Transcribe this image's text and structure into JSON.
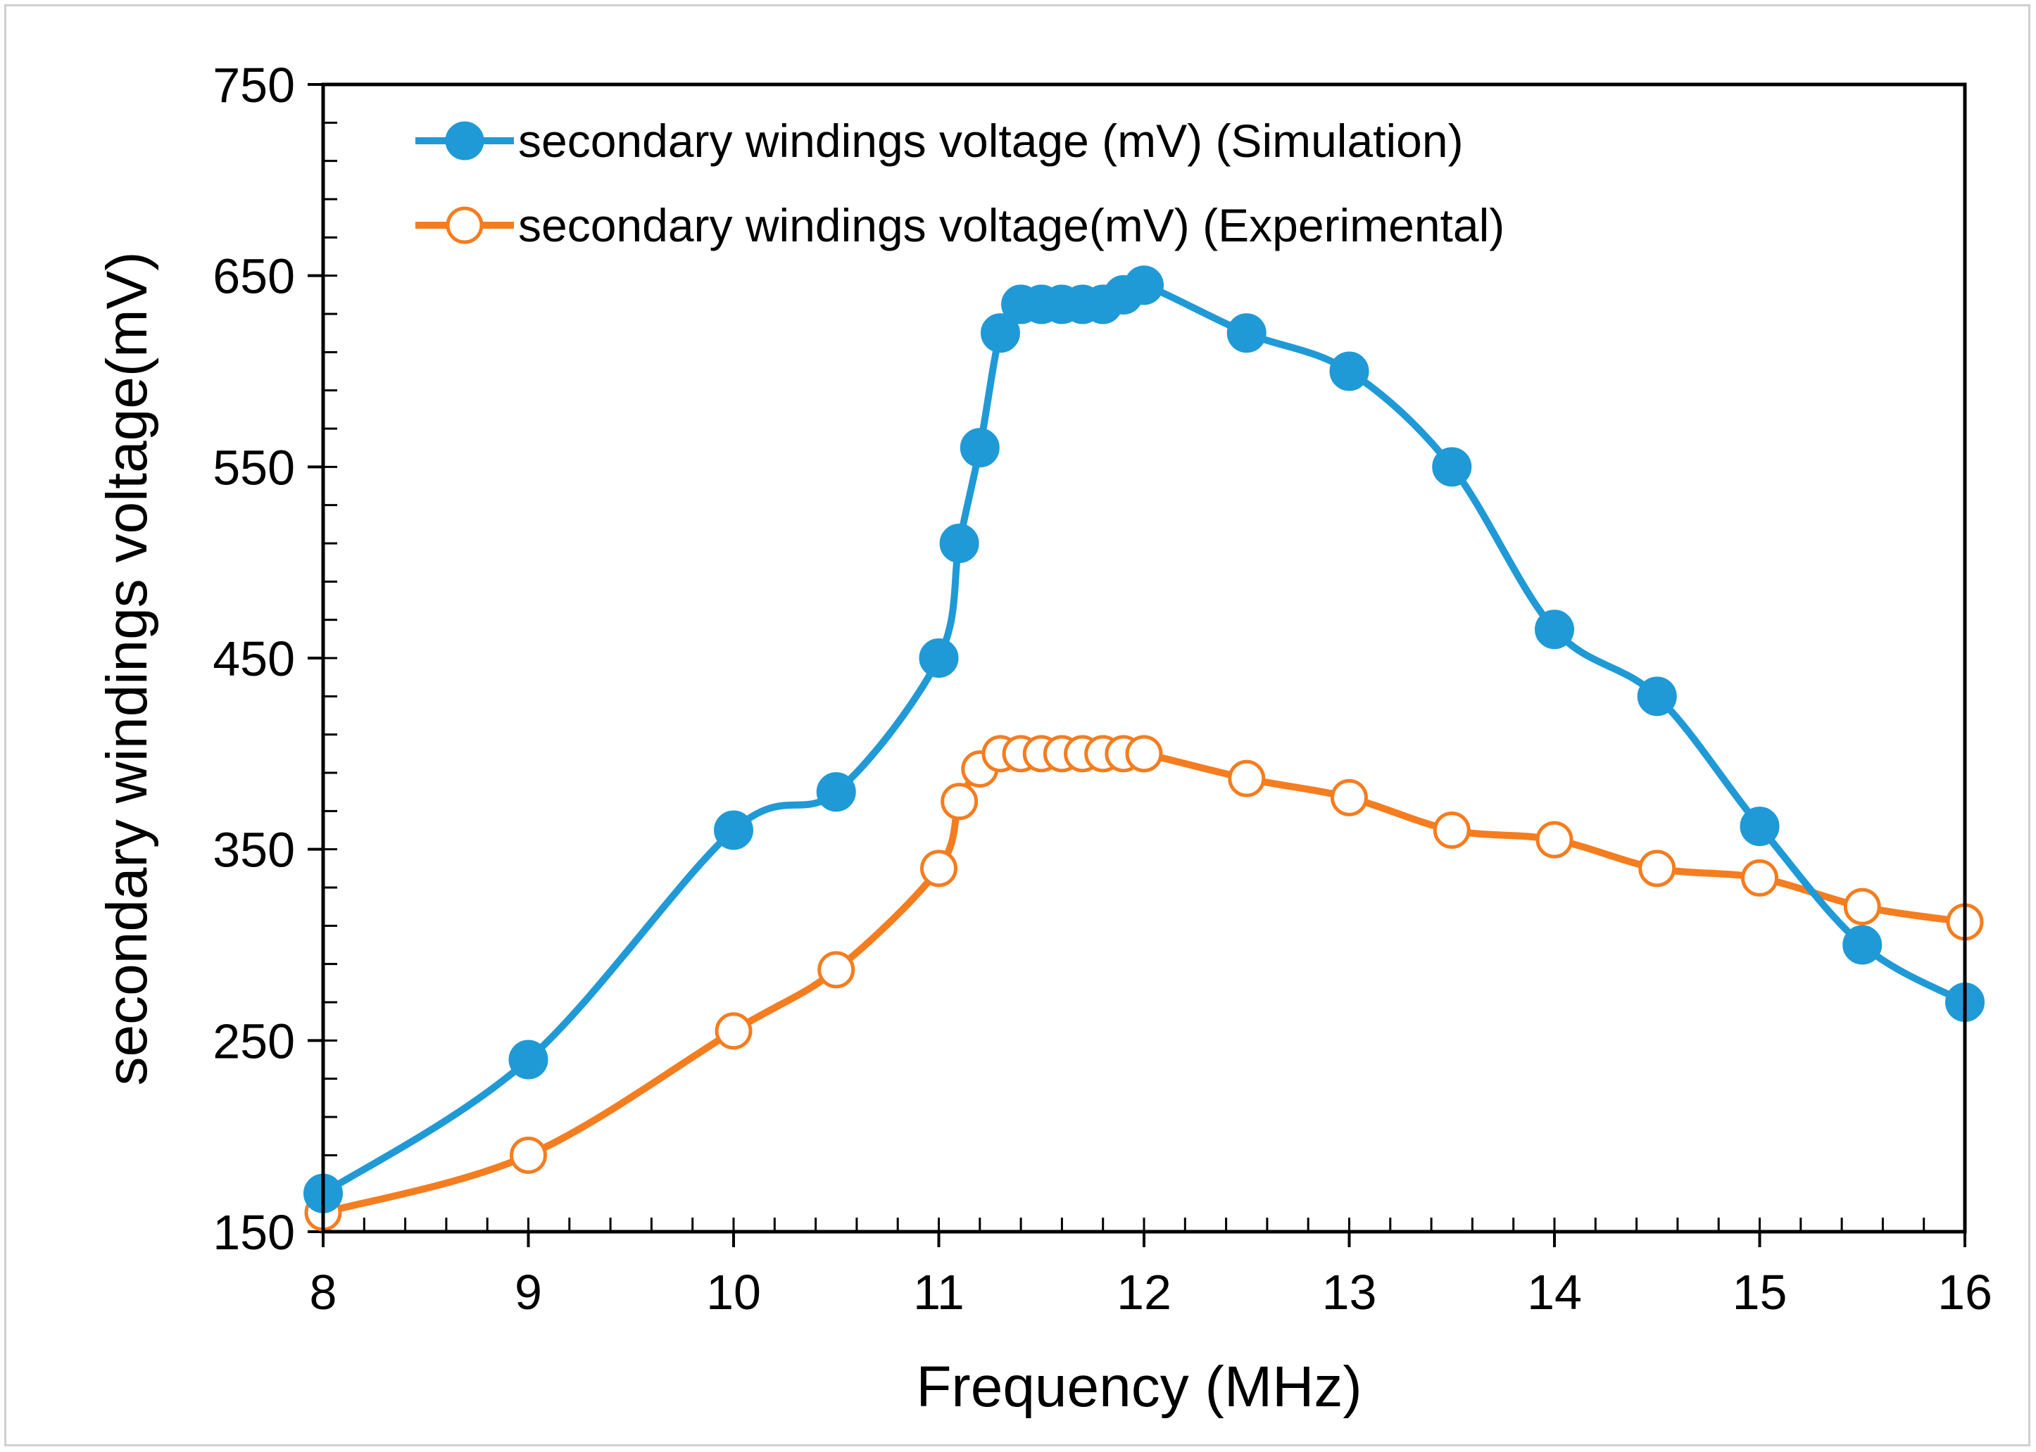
{
  "chart_data": {
    "type": "line",
    "title": "",
    "xlabel": "Frequency (MHz)",
    "ylabel": "secondary windings voltage(mV)",
    "xlim": [
      8,
      16
    ],
    "ylim": [
      150,
      750
    ],
    "x_ticks": [
      8,
      9,
      10,
      11,
      12,
      13,
      14,
      15,
      16
    ],
    "y_ticks": [
      150,
      250,
      350,
      450,
      550,
      650,
      750
    ],
    "x_ticks_labels": [
      "8",
      "9",
      "10",
      "11",
      "12",
      "13",
      "14",
      "15",
      "16"
    ],
    "y_ticks_labels": [
      "150",
      "250",
      "350",
      "450",
      "550",
      "650",
      "750"
    ],
    "grid": false,
    "legend_position": "top-left",
    "series": [
      {
        "name": "secondary windings voltage (mV) (Simulation)",
        "color": "#1f9ad6",
        "marker": "filled-circle",
        "x": [
          8,
          9,
          10,
          10.5,
          11,
          11.1,
          11.2,
          11.3,
          11.4,
          11.5,
          11.6,
          11.7,
          11.8,
          11.9,
          12,
          12.5,
          13,
          13.5,
          14,
          14.5,
          15,
          15.5,
          16
        ],
        "y": [
          170,
          240,
          360,
          380,
          450,
          510,
          560,
          620,
          635,
          635,
          635,
          635,
          635,
          640,
          645,
          620,
          600,
          550,
          465,
          430,
          362,
          300,
          270
        ]
      },
      {
        "name": "secondary windings voltage(mV) (Experimental)",
        "color": "#f47d20",
        "marker": "open-circle",
        "x": [
          8,
          9,
          10,
          10.5,
          11,
          11.1,
          11.2,
          11.3,
          11.4,
          11.5,
          11.6,
          11.7,
          11.8,
          11.9,
          12,
          12.5,
          13,
          13.5,
          14,
          14.5,
          15,
          15.5,
          16
        ],
        "y": [
          160,
          190,
          255,
          287,
          340,
          375,
          392,
          400,
          400,
          400,
          400,
          400,
          400,
          400,
          400,
          387,
          377,
          360,
          355,
          340,
          335,
          320,
          312
        ]
      }
    ]
  }
}
